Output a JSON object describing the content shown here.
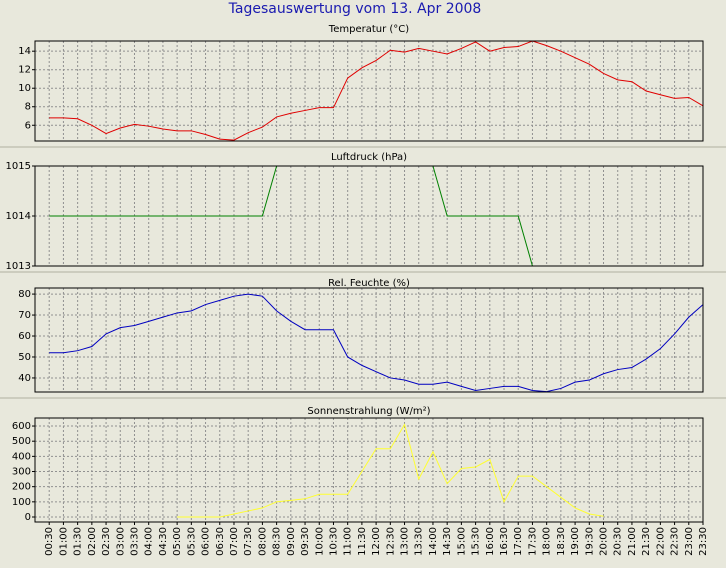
{
  "title": "Tagesauswertung vom 13. Apr 2008",
  "chart_data": [
    {
      "type": "line",
      "title": "Temperatur (°C)",
      "color": "#e00000",
      "values": [
        6.8,
        6.8,
        6.7,
        6.0,
        5.1,
        5.7,
        6.1,
        5.9,
        5.6,
        5.4,
        5.4,
        5.0,
        4.5,
        4.4,
        5.2,
        5.8,
        6.9,
        7.3,
        7.6,
        7.9,
        7.9,
        11.1,
        12.2,
        13.0,
        14.1,
        13.9,
        14.3,
        14.0,
        13.7,
        14.3,
        15.0,
        14.0,
        14.4,
        14.5,
        15.1,
        14.6,
        14.0,
        13.3,
        12.6,
        11.6,
        10.9,
        10.7,
        9.7,
        9.3,
        8.9,
        9.0,
        8.1
      ],
      "ylim": [
        4.3,
        15.1
      ],
      "yticks": [
        6,
        8,
        10,
        12,
        14
      ],
      "grid": true
    },
    {
      "type": "line",
      "title": "Luftdruck (hPa)",
      "color": "#008000",
      "values": [
        1014,
        1014,
        1014,
        1014,
        1014,
        1014,
        1014,
        1014,
        1014,
        1014,
        1014,
        1014,
        1014,
        1014,
        1014,
        1014,
        1015,
        1015,
        1015,
        1015,
        1015,
        1015,
        1015,
        1015,
        1015,
        1015,
        1015,
        1015,
        1014,
        1014,
        1014,
        1014,
        1014,
        1014,
        1013,
        1013,
        1013,
        1013,
        1013,
        1013,
        1013,
        1013,
        1013,
        1013,
        1013,
        1013,
        1013
      ],
      "ylim": [
        1013,
        1015
      ],
      "yticks": [
        1013,
        1014,
        1015
      ],
      "grid": true
    },
    {
      "type": "line",
      "title": "Rel. Feuchte (%)",
      "color": "#0000c0",
      "values": [
        52,
        52,
        53,
        55,
        61,
        64,
        65,
        67,
        69,
        71,
        72,
        75,
        77,
        79,
        80,
        79,
        72,
        67,
        63,
        63,
        63,
        50,
        46,
        43,
        40,
        39,
        37,
        37,
        38,
        36,
        34,
        35,
        36,
        36,
        34,
        33.5,
        35,
        38,
        39,
        42,
        44,
        45,
        49,
        54,
        61,
        69,
        75
      ],
      "ylim": [
        33.3,
        82.9
      ],
      "yticks": [
        40,
        50,
        60,
        70,
        80
      ],
      "grid": true
    },
    {
      "type": "line",
      "title": "Sonnenstrahlung (W/m²)",
      "color": "#ffff30",
      "values": [
        null,
        null,
        null,
        null,
        null,
        null,
        null,
        null,
        null,
        0,
        0,
        0,
        0,
        20,
        40,
        60,
        100,
        110,
        120,
        150,
        150,
        150,
        300,
        450,
        450,
        610,
        250,
        430,
        220,
        320,
        330,
        380,
        100,
        270,
        270,
        200,
        130,
        60,
        20,
        5,
        null,
        null,
        null,
        null,
        null,
        null,
        null
      ],
      "ylim": [
        -33,
        653
      ],
      "yticks": [
        0,
        100,
        200,
        300,
        400,
        500,
        600
      ],
      "grid": true,
      "categories": [
        "00:30",
        "01:00",
        "01:30",
        "02:00",
        "02:30",
        "03:00",
        "03:30",
        "04:00",
        "04:30",
        "05:00",
        "05:30",
        "06:00",
        "06:30",
        "07:00",
        "07:30",
        "08:00",
        "08:30",
        "09:00",
        "09:30",
        "10:00",
        "10:30",
        "11:00",
        "11:30",
        "12:00",
        "12:30",
        "13:00",
        "13:30",
        "14:00",
        "14:30",
        "15:00",
        "15:30",
        "16:00",
        "16:30",
        "17:00",
        "17:30",
        "18:00",
        "18:30",
        "19:00",
        "19:30",
        "20:00",
        "20:30",
        "21:00",
        "21:30",
        "22:00",
        "22:30",
        "23:00",
        "23:30"
      ]
    }
  ]
}
